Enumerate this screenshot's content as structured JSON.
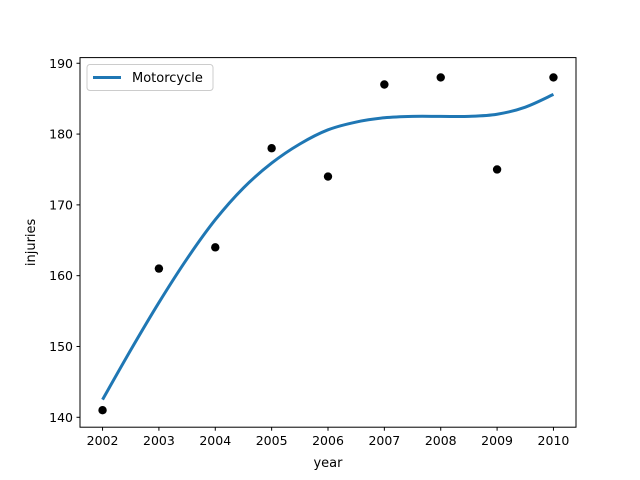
{
  "chart_data": {
    "type": "scatter",
    "title": "",
    "xlabel": "year",
    "ylabel": "injuries",
    "xlim": [
      2001.6,
      2010.4
    ],
    "ylim": [
      138.6,
      190.8
    ],
    "xticks": [
      2002,
      2003,
      2004,
      2005,
      2006,
      2007,
      2008,
      2009,
      2010
    ],
    "yticks": [
      140,
      150,
      160,
      170,
      180,
      190
    ],
    "grid": false,
    "legend_position": "top-left",
    "points": {
      "x": [
        2002,
        2003,
        2004,
        2005,
        2006,
        2007,
        2008,
        2009,
        2010
      ],
      "y": [
        141,
        161,
        164,
        178,
        174,
        187,
        188,
        175,
        188
      ],
      "color": "#000000"
    },
    "series": [
      {
        "name": "Motorcycle",
        "type": "line",
        "color": "#1f77b4",
        "x": [
          2002,
          2002.5,
          2003,
          2003.5,
          2004,
          2004.5,
          2005,
          2005.5,
          2006,
          2006.5,
          2007,
          2007.5,
          2008,
          2008.5,
          2009,
          2009.5,
          2010
        ],
        "y": [
          142.5,
          149.5,
          156.2,
          162.4,
          167.9,
          172.4,
          175.9,
          178.6,
          180.6,
          181.7,
          182.3,
          182.5,
          182.5,
          182.5,
          182.8,
          183.8,
          185.6
        ]
      }
    ]
  }
}
